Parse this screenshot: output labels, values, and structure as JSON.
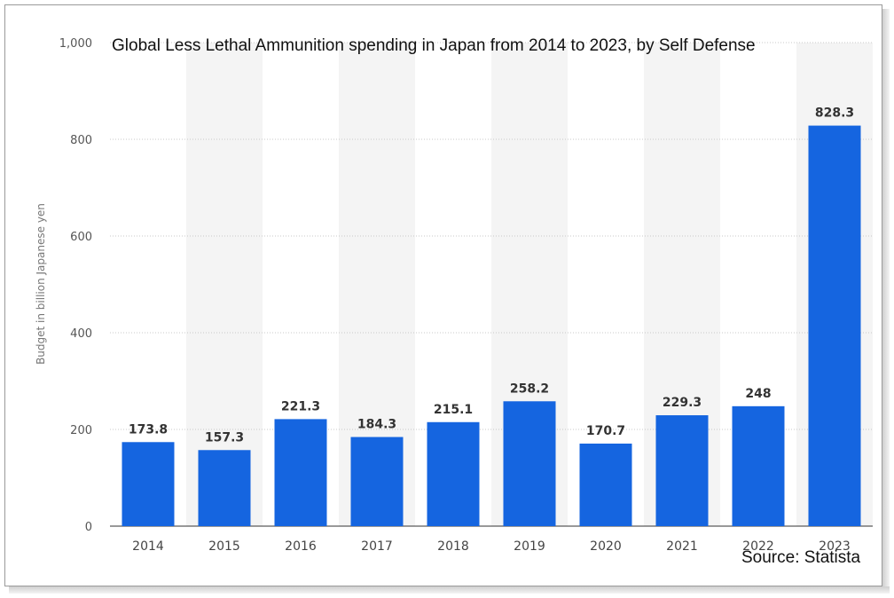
{
  "chart_data": {
    "type": "bar",
    "title": "Global Less Lethal Ammunition spending in Japan from 2014 to 2023, by Self Defense",
    "ylabel": "Budget in billion Japanese yen",
    "xlabel": "",
    "categories": [
      "2014",
      "2015",
      "2016",
      "2017",
      "2018",
      "2019",
      "2020",
      "2021",
      "2022",
      "2023"
    ],
    "values": [
      173.8,
      157.3,
      221.3,
      184.3,
      215.1,
      258.2,
      170.7,
      229.3,
      248,
      828.3
    ],
    "value_labels": [
      "173.8",
      "157.3",
      "221.3",
      "184.3",
      "215.1",
      "258.2",
      "170.7",
      "229.3",
      "248",
      "828.3"
    ],
    "ylim": [
      0,
      1000
    ],
    "yticks": [
      0,
      200,
      400,
      600,
      800,
      1000
    ],
    "ytick_labels": [
      "0",
      "200",
      "400",
      "600",
      "800",
      "1,000"
    ],
    "grid": true,
    "bar_color": "#1565e0",
    "band_color": "#f4f4f4"
  },
  "source": "Source: Statista"
}
